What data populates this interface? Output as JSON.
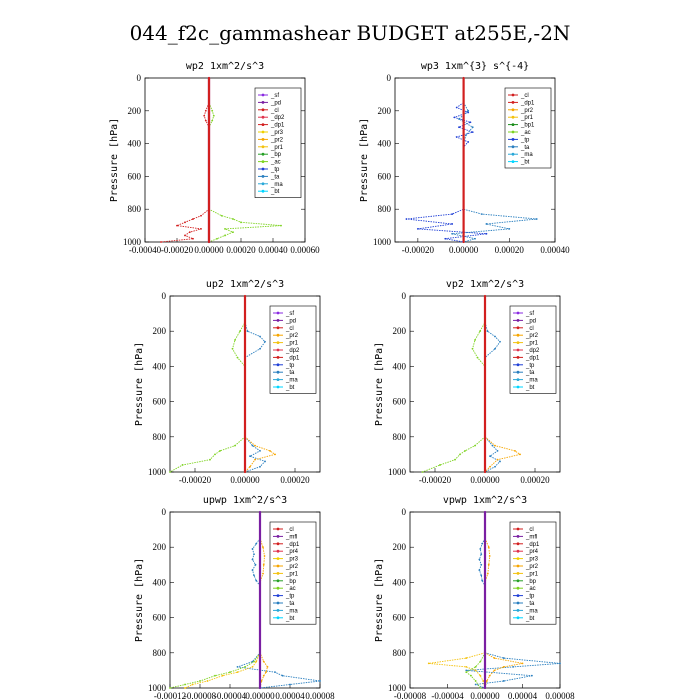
{
  "figure_title": "044_f2c_gammashear  BUDGET at255E,-2N",
  "colors": {
    "sf": "#8a2be2",
    "pd": "#7a1fa2",
    "cl": "#d21f1f",
    "mfl": "#7a1fa2",
    "dp1": "#d21f1f",
    "dp2": "#e0334d",
    "pr1": "#f4c20d",
    "pr2": "#f7a600",
    "pr3": "#f0d000",
    "pr4": "#e0334d",
    "bp": "#27a027",
    "bp1": "#1a8c1a",
    "ac": "#7ed321",
    "tp": "#1f3fd6",
    "ta": "#2a7fbf",
    "ma": "#2aa8d8",
    "bt": "#00d5ff"
  },
  "chart_data": [
    {
      "type": "line",
      "title": "wp2  1xm^2/s^3",
      "ylabel": "Pressure [hPa]",
      "xlim": [
        -0.0004,
        0.0006
      ],
      "xticks": [
        -0.0004,
        -0.0002,
        0,
        0.0002,
        0.0004,
        0.0006
      ],
      "xtick_labels": [
        "-0.00040",
        "-0.00020",
        "0.00000",
        "0.00020",
        "0.00040",
        "0.00060"
      ],
      "ylim": [
        0,
        1000
      ],
      "yticks": [
        0,
        200,
        400,
        600,
        800,
        1000
      ],
      "legend": [
        "_sf",
        "_pd",
        "_cl",
        "_dp2",
        "_dp1",
        "_pr3",
        "_pr2",
        "_pr1",
        "_bp",
        "_ac",
        "_tp",
        "_ta",
        "_ma",
        "_bt"
      ],
      "series": [
        {
          "name": "_ac",
          "color_key": "ac",
          "y": [
            0,
            150,
            200,
            230,
            260,
            300,
            800,
            840,
            860,
            880,
            900,
            920,
            940,
            960,
            980,
            1000
          ],
          "x": [
            0,
            0,
            2e-05,
            3e-05,
            2e-05,
            0,
            0,
            8e-05,
            0.00015,
            0.0002,
            0.00045,
            0.0001,
            0.00015,
            0.0001,
            5e-05,
            0
          ]
        },
        {
          "name": "_dp1",
          "color_key": "dp1",
          "y": [
            0,
            150,
            200,
            230,
            260,
            300,
            800,
            840,
            860,
            880,
            900,
            920,
            940,
            960,
            980,
            1000
          ],
          "x": [
            0,
            0,
            -2e-05,
            -3e-05,
            -2e-05,
            0,
            0,
            -5e-05,
            -0.0001,
            -0.00015,
            -0.0002,
            -5e-05,
            -0.00012,
            -0.00015,
            -0.0001,
            -0.0003
          ]
        },
        {
          "name": "_pd",
          "color_key": "pd",
          "y": [
            0,
            1000
          ],
          "x": [
            0,
            0
          ]
        },
        {
          "name": "_cl",
          "color_key": "cl",
          "y": [
            0,
            1000
          ],
          "x": [
            0,
            0
          ]
        }
      ]
    },
    {
      "type": "line",
      "title": "wp3  1xm^{3} s^{-4}",
      "ylabel": "Pressure [hPa]",
      "xlim": [
        -0.0003,
        0.0004
      ],
      "xticks": [
        -0.0002,
        0,
        0.0002,
        0.0004
      ],
      "xtick_labels": [
        "-0.00020",
        "0.00000",
        "0.00020",
        "0.00040"
      ],
      "ylim": [
        0,
        1000
      ],
      "yticks": [
        0,
        200,
        400,
        600,
        800,
        1000
      ],
      "legend": [
        "_cl",
        "_dp1",
        "_pr2",
        "_pr1",
        "_bp1",
        "_ac",
        "_tp",
        "_ta",
        "_ma",
        "_bt"
      ],
      "series": [
        {
          "name": "_tp",
          "color_key": "tp",
          "y": [
            150,
            180,
            210,
            240,
            270,
            300,
            330,
            360,
            390,
            420,
            800,
            830,
            860,
            890,
            920,
            950,
            980,
            1000
          ],
          "x": [
            0,
            -3e-05,
            2e-05,
            -4e-05,
            3e-05,
            -2e-05,
            4e-05,
            -3e-05,
            2e-05,
            0,
            0,
            -5e-05,
            -0.00025,
            -5e-05,
            -0.0002,
            0.0001,
            -8e-05,
            0
          ]
        },
        {
          "name": "_ta",
          "color_key": "ta",
          "y": [
            150,
            200,
            250,
            300,
            350,
            400,
            800,
            830,
            860,
            890,
            920,
            950,
            980,
            1000
          ],
          "x": [
            0,
            2e-05,
            -2e-05,
            4e-05,
            1e-05,
            0,
            0,
            8e-05,
            0.00032,
            0.0001,
            0.0002,
            -5e-05,
            5e-05,
            0
          ]
        },
        {
          "name": "_cl",
          "color_key": "cl",
          "y": [
            0,
            1000
          ],
          "x": [
            0,
            0
          ]
        }
      ]
    },
    {
      "type": "line",
      "title": "up2  1xm^2/s^3",
      "ylabel": "Pressure [hPa]",
      "xlim": [
        -0.0003,
        0.0003
      ],
      "xticks": [
        -0.0002,
        0,
        0.0002
      ],
      "xtick_labels": [
        "-0.00020",
        "0.00000",
        "0.00020"
      ],
      "ylim": [
        0,
        1000
      ],
      "yticks": [
        0,
        200,
        400,
        600,
        800,
        1000
      ],
      "legend": [
        "_sf",
        "_pd",
        "_cl",
        "_pr2",
        "_pr1",
        "_dp2",
        "_dp1",
        "_tp",
        "_ta",
        "_ma",
        "_bt"
      ],
      "series": [
        {
          "name": "_ac",
          "color_key": "ac",
          "y": [
            0,
            150,
            200,
            250,
            300,
            350,
            400,
            800,
            850,
            880,
            900,
            930,
            960,
            1000
          ],
          "x": [
            0,
            0,
            -2e-05,
            -4e-05,
            -5e-05,
            -3e-05,
            0,
            0,
            -4e-05,
            -0.0001,
            -0.00012,
            -0.00014,
            -0.00025,
            -0.0003
          ]
        },
        {
          "name": "_ta",
          "color_key": "ta",
          "y": [
            150,
            200,
            230,
            260,
            300,
            350,
            800,
            850,
            880,
            910,
            940,
            970,
            1000
          ],
          "x": [
            0,
            1e-05,
            6e-05,
            8e-05,
            6e-05,
            0,
            0,
            3e-05,
            6e-05,
            2e-05,
            8e-05,
            6e-05,
            0
          ]
        },
        {
          "name": "_pr2",
          "color_key": "pr2",
          "y": [
            800,
            850,
            880,
            900,
            930,
            970,
            1000
          ],
          "x": [
            0,
            4e-05,
            0.0001,
            0.00012,
            4e-05,
            2e-05,
            0
          ]
        },
        {
          "name": "_cl",
          "color_key": "cl",
          "y": [
            0,
            1000
          ],
          "x": [
            0,
            0
          ]
        }
      ]
    },
    {
      "type": "line",
      "title": "vp2  1xm^2/s^3",
      "ylabel": "Pressure [hPa]",
      "xlim": [
        -0.0003,
        0.0003
      ],
      "xticks": [
        -0.0002,
        0,
        0.0002
      ],
      "xtick_labels": [
        "-0.00020",
        "0.00000",
        "0.00020"
      ],
      "ylim": [
        0,
        1000
      ],
      "yticks": [
        0,
        200,
        400,
        600,
        800,
        1000
      ],
      "legend": [
        "_sf",
        "_pd",
        "_cl",
        "_pr2",
        "_pr1",
        "_dp2",
        "_dp1",
        "_tp",
        "_ta",
        "_ma",
        "_bt"
      ],
      "series": [
        {
          "name": "_ac",
          "color_key": "ac",
          "y": [
            0,
            150,
            200,
            250,
            300,
            350,
            400,
            800,
            850,
            880,
            900,
            930,
            960,
            1000
          ],
          "x": [
            0,
            0,
            -2e-05,
            -4e-05,
            -5e-05,
            -3e-05,
            0,
            0,
            -4e-05,
            -8e-05,
            -0.0001,
            -0.00012,
            -0.00018,
            -0.00025
          ]
        },
        {
          "name": "_ta",
          "color_key": "ta",
          "y": [
            150,
            200,
            230,
            260,
            300,
            350,
            800,
            850,
            880,
            910,
            940,
            970,
            1000
          ],
          "x": [
            0,
            1e-05,
            4e-05,
            6e-05,
            4e-05,
            0,
            0,
            3e-05,
            5e-05,
            2e-05,
            6e-05,
            4e-05,
            0
          ]
        },
        {
          "name": "_pr2",
          "color_key": "pr2",
          "y": [
            800,
            850,
            880,
            900,
            930,
            970,
            1000
          ],
          "x": [
            0,
            4e-05,
            0.00012,
            0.00014,
            5e-05,
            2e-05,
            0
          ]
        },
        {
          "name": "_cl",
          "color_key": "cl",
          "y": [
            0,
            1000
          ],
          "x": [
            0,
            0
          ]
        }
      ]
    },
    {
      "type": "line",
      "title": "upwp  1xm^2/s^3",
      "ylabel": "Pressure [hPa]",
      "xlim": [
        -0.00012,
        8e-05
      ],
      "xticks": [
        -0.00012,
        -8e-05,
        -4e-05,
        0,
        4e-05,
        8e-05
      ],
      "xtick_labels": [
        "-0.00012",
        "-0.00008",
        "-0.00004",
        "0.00000",
        "0.00004",
        "0.00008"
      ],
      "ylim": [
        0,
        1000
      ],
      "yticks": [
        0,
        200,
        400,
        600,
        800,
        1000
      ],
      "legend": [
        "_cl",
        "_mfl",
        "_dp1",
        "_pr4",
        "_pr3",
        "_pr2",
        "_pr1",
        "_bp",
        "_ac",
        "_tp",
        "_ta",
        "_ma",
        "_bt"
      ],
      "series": [
        {
          "name": "_ta",
          "color_key": "ta",
          "y": [
            150,
            180,
            210,
            240,
            270,
            300,
            330,
            360,
            390,
            420,
            800,
            850,
            880,
            910,
            930,
            960,
            980,
            1000
          ],
          "x": [
            0,
            -5e-06,
            -1e-05,
            -8e-06,
            -1e-05,
            -6e-06,
            -1e-05,
            -8e-06,
            -5e-06,
            0,
            0,
            -1e-05,
            -3e-05,
            2e-05,
            3e-05,
            8e-05,
            4e-05,
            0
          ]
        },
        {
          "name": "_pr2",
          "color_key": "pr2",
          "y": [
            150,
            200,
            250,
            300,
            350,
            400,
            800,
            850,
            880,
            910,
            930,
            960,
            1000
          ],
          "x": [
            0,
            4e-06,
            6e-06,
            5e-06,
            4e-06,
            0,
            0,
            5e-06,
            1e-05,
            8e-06,
            5e-06,
            2e-06,
            0
          ]
        },
        {
          "name": "_ac",
          "color_key": "ac",
          "y": [
            800,
            850,
            880,
            910,
            930,
            960,
            980,
            1000
          ],
          "x": [
            0,
            -8e-06,
            -2e-05,
            -4e-05,
            -6e-05,
            -8e-05,
            -0.0001,
            -0.00012
          ]
        },
        {
          "name": "_pr1",
          "color_key": "pr1",
          "y": [
            800,
            850,
            880,
            910,
            930,
            960,
            980,
            1000
          ],
          "x": [
            0,
            -5e-06,
            -1e-05,
            -3e-05,
            -5e-05,
            -7e-05,
            -9e-05,
            -0.0001
          ]
        },
        {
          "name": "_mfl",
          "color_key": "mfl",
          "y": [
            0,
            1000
          ],
          "x": [
            0,
            0
          ]
        }
      ]
    },
    {
      "type": "line",
      "title": "vpwp  1xm^2/s^3",
      "ylabel": "Pressure [hPa]",
      "xlim": [
        -8e-05,
        8e-05
      ],
      "xticks": [
        -8e-05,
        -4e-05,
        0,
        4e-05,
        8e-05
      ],
      "xtick_labels": [
        "-0.00008",
        "-0.00004",
        "0.00000",
        "0.00004",
        "0.00008"
      ],
      "ylim": [
        0,
        1000
      ],
      "yticks": [
        0,
        200,
        400,
        600,
        800,
        1000
      ],
      "legend": [
        "_cl",
        "_mfl",
        "_dp1",
        "_pr4",
        "_pr3",
        "_pr2",
        "_pr1",
        "_bp",
        "_ac",
        "_tp",
        "_ta",
        "_ma",
        "_bt"
      ],
      "series": [
        {
          "name": "_ta",
          "color_key": "ta",
          "y": [
            150,
            180,
            210,
            240,
            270,
            300,
            330,
            360,
            390,
            420,
            800,
            830,
            860,
            880,
            900,
            930,
            960,
            980,
            1000
          ],
          "x": [
            0,
            -3e-06,
            -5e-06,
            -4e-06,
            -6e-06,
            -4e-06,
            -6e-06,
            -4e-06,
            -3e-06,
            0,
            0,
            2e-05,
            8e-05,
            3e-05,
            -2e-05,
            5e-05,
            2e-05,
            -1e-05,
            0
          ]
        },
        {
          "name": "_pr2",
          "color_key": "pr2",
          "y": [
            150,
            200,
            250,
            300,
            350,
            400,
            800,
            830,
            860,
            880,
            900,
            930,
            960,
            1000
          ],
          "x": [
            0,
            4e-06,
            5e-06,
            4e-06,
            3e-06,
            0,
            0,
            1e-05,
            4e-05,
            2e-05,
            1e-05,
            5e-06,
            2e-06,
            0
          ]
        },
        {
          "name": "_pr1",
          "color_key": "pr1",
          "y": [
            800,
            830,
            860,
            880,
            900,
            930,
            960,
            1000
          ],
          "x": [
            0,
            -2e-05,
            -6e-05,
            -2e-05,
            -1e-05,
            -5e-06,
            -2e-06,
            0
          ]
        },
        {
          "name": "_ac",
          "color_key": "ac",
          "y": [
            800,
            850,
            880,
            910,
            930,
            960,
            1000
          ],
          "x": [
            0,
            -5e-06,
            -1e-05,
            -2e-05,
            -1.5e-05,
            -1e-05,
            -5e-06
          ]
        },
        {
          "name": "_mfl",
          "color_key": "mfl",
          "y": [
            0,
            1000
          ],
          "x": [
            0,
            0
          ]
        }
      ]
    }
  ]
}
